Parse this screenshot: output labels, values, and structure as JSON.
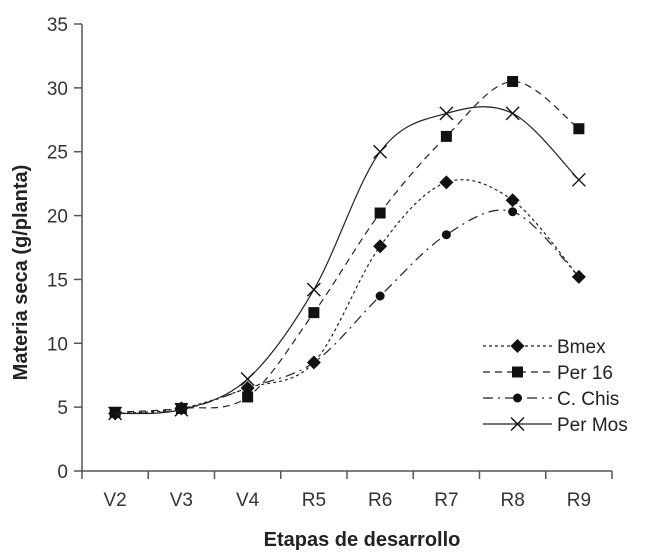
{
  "chart_data": {
    "type": "line",
    "xlabel": "Etapas de desarrollo",
    "ylabel": "Materia seca (g/planta)",
    "categories": [
      "V2",
      "V3",
      "V4",
      "R5",
      "R6",
      "R7",
      "R8",
      "R9"
    ],
    "ylim": [
      0,
      35
    ],
    "yticks": [
      0,
      5,
      10,
      15,
      20,
      25,
      30,
      35
    ],
    "grid": false,
    "legend_position": "bottom-right",
    "series": [
      {
        "name": "Bmex",
        "marker": "diamond",
        "dash": "dotted",
        "values": [
          4.5,
          4.9,
          6.5,
          8.5,
          17.6,
          22.6,
          21.2,
          15.2
        ]
      },
      {
        "name": "Per 16",
        "marker": "square",
        "dash": "dashed",
        "values": [
          4.6,
          4.9,
          5.8,
          12.4,
          20.2,
          26.2,
          30.5,
          26.8
        ]
      },
      {
        "name": "C. Chis",
        "marker": "circle",
        "dash": "dashdot",
        "values": [
          4.5,
          4.8,
          6.5,
          8.5,
          13.7,
          18.5,
          20.3,
          15.2
        ]
      },
      {
        "name": "Per Mos",
        "marker": "cross",
        "dash": "solid",
        "values": [
          4.5,
          4.8,
          7.2,
          14.2,
          25.0,
          28.0,
          28.0,
          22.8
        ]
      }
    ]
  }
}
